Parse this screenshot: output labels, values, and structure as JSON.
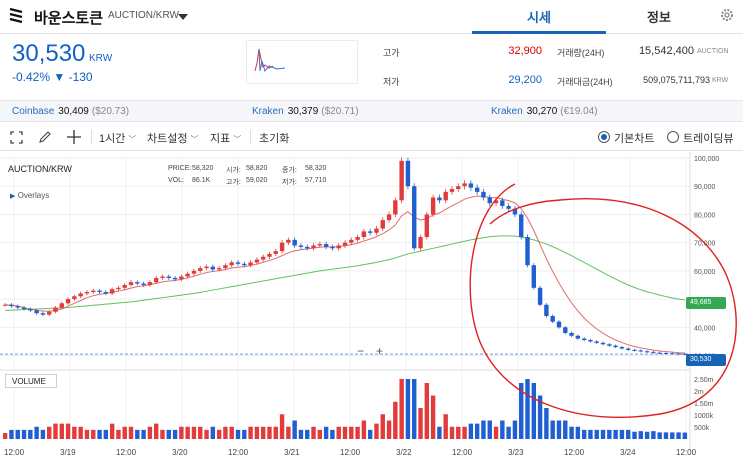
{
  "header": {
    "coin_name": "바운스토큰",
    "coin_code": "AUCTION/KRW",
    "tabs": [
      "시세",
      "정보"
    ]
  },
  "summary": {
    "price": "30,530",
    "unit": "KRW",
    "change_pct": "-0.42%",
    "change_abs": "▼ -130"
  },
  "stats": {
    "high_label": "고가",
    "high": "32,900",
    "low_label": "저가",
    "low": "29,200",
    "vol_label": "거래량(24H)",
    "vol": "15,542,400",
    "vol_unit": "AUCTION",
    "amt_label": "거래대금(24H)",
    "amt": "509,075,711,793",
    "amt_unit": "KRW"
  },
  "exchanges": [
    {
      "name": "Coinbase",
      "price": "30,409",
      "sub": "($20.73)"
    },
    {
      "name": "Kraken",
      "price": "30,379",
      "sub": "($20.71)"
    },
    {
      "name": "Kraken",
      "price": "30,270",
      "sub": "(€19.04)"
    }
  ],
  "toolbar": {
    "interval": "1시간",
    "chart_settings": "차트설정",
    "indicators": "지표",
    "reset": "초기화",
    "basic_chart": "기본차트",
    "tradingview": "트레이딩뷰"
  },
  "legend": {
    "pair": "AUCTION/KRW",
    "price_l": "PRICE:",
    "price_v": "58,320",
    "open_l": "시가:",
    "open_v": "58,820",
    "close_l": "종가:",
    "close_v": "58,320",
    "vol_l": "VOL:",
    "vol_v": "86.1K",
    "high_l": "고가:",
    "high_v": "59,020",
    "low_l": "저가:",
    "low_v": "57,710",
    "overlays": "Overlays",
    "volume": "VOLUME"
  },
  "chart_data": {
    "type": "candlestick",
    "y_ticks": [
      "100,000",
      "90,000",
      "80,000",
      "70,000",
      "60,000",
      "50,000",
      "40,000",
      "30,000"
    ],
    "vol_ticks": [
      "2.50m",
      "2m",
      "1.50m",
      "1000k",
      "500k"
    ],
    "x_ticks": [
      "12:00",
      "3/19",
      "12:00",
      "3/20",
      "12:00",
      "3/21",
      "12:00",
      "3/22",
      "12:00",
      "3/23",
      "12:00",
      "3/24",
      "12:00"
    ],
    "ylim": [
      27000,
      100000
    ],
    "ma_marker": "49,685",
    "last_price": "30,530",
    "close_series": [
      48000,
      47500,
      47000,
      46500,
      46000,
      45000,
      44500,
      45500,
      47000,
      48500,
      50000,
      51000,
      52000,
      52500,
      53000,
      52500,
      52000,
      53500,
      54000,
      55000,
      56000,
      55500,
      55000,
      56000,
      57500,
      58000,
      57500,
      57000,
      58000,
      59000,
      60000,
      61000,
      61500,
      60500,
      61000,
      62000,
      63000,
      62500,
      62000,
      63000,
      64000,
      65000,
      66000,
      67000,
      70000,
      71000,
      69000,
      68500,
      68000,
      69000,
      69500,
      68500,
      68000,
      69000,
      70000,
      71000,
      72000,
      74000,
      73500,
      75000,
      78000,
      80000,
      85000,
      99000,
      90000,
      68000,
      72000,
      80000,
      86000,
      85000,
      88000,
      89000,
      90000,
      91000,
      89500,
      88000,
      86000,
      84000,
      85000,
      83000,
      82000,
      80000,
      72000,
      62000,
      54000,
      48000,
      44000,
      42000,
      40000,
      38000,
      37000,
      36000,
      35500,
      35000,
      34500,
      34000,
      33500,
      33000,
      32500,
      32000,
      31800,
      31500,
      31300,
      31000,
      30900,
      30800,
      30700,
      30600,
      30530
    ],
    "ma_fast": [
      48000,
      47800,
      47500,
      47000,
      46500,
      46000,
      45800,
      45700,
      46000,
      46500,
      47500,
      48500,
      49500,
      50500,
      51200,
      51700,
      52000,
      52400,
      52800,
      53300,
      53900,
      54400,
      54700,
      55100,
      55600,
      56100,
      56400,
      56600,
      57000,
      57500,
      58100,
      58800,
      59400,
      59800,
      60100,
      60500,
      61000,
      61300,
      61500,
      61900,
      62400,
      63000,
      63700,
      64400,
      65400,
      66400,
      67100,
      67500,
      67800,
      68100,
      68400,
      68500,
      68500,
      68600,
      68900,
      69300,
      69800,
      70600,
      71300,
      72100,
      73200,
      74500,
      76300,
      79500,
      81000,
      79000,
      78000,
      78500,
      79800,
      80500,
      81800,
      83000,
      84200,
      85400,
      86100,
      86500,
      86400,
      86000,
      85900,
      85400,
      84900,
      84100,
      82000,
      78700,
      74300,
      69300,
      64300,
      59800,
      55700,
      52000,
      48700,
      45800,
      43300,
      41200,
      39400,
      37900,
      36600,
      35500,
      34600,
      33800,
      33200,
      32700,
      32300,
      31900,
      31600,
      31400,
      31200,
      31000,
      30900
    ],
    "ma_slow": [
      46000,
      46100,
      46200,
      46300,
      46400,
      46500,
      46600,
      46700,
      46800,
      46900,
      47000,
      47200,
      47400,
      47600,
      47800,
      48000,
      48200,
      48400,
      48600,
      48800,
      49000,
      49300,
      49600,
      49900,
      50200,
      50500,
      50800,
      51100,
      51400,
      51700,
      52000,
      52400,
      52800,
      53200,
      53600,
      54000,
      54400,
      54800,
      55200,
      55600,
      56000,
      56400,
      56800,
      57200,
      57600,
      58000,
      58400,
      58800,
      59200,
      59600,
      60000,
      60300,
      60600,
      60900,
      61200,
      61500,
      61800,
      62200,
      62600,
      63000,
      63500,
      64000,
      64600,
      65300,
      66000,
      66500,
      67000,
      67500,
      68000,
      68500,
      69000,
      69500,
      70000,
      70500,
      71000,
      71400,
      71800,
      72100,
      72300,
      72400,
      72400,
      72300,
      72000,
      71500,
      71000,
      70300,
      69500,
      68600,
      67600,
      66500,
      65400,
      64200,
      63000,
      61800,
      60600,
      59400,
      58200,
      57100,
      56000,
      55000,
      54100,
      53300,
      52600,
      52000,
      51400,
      50900,
      50400,
      50000,
      49685
    ]
  }
}
